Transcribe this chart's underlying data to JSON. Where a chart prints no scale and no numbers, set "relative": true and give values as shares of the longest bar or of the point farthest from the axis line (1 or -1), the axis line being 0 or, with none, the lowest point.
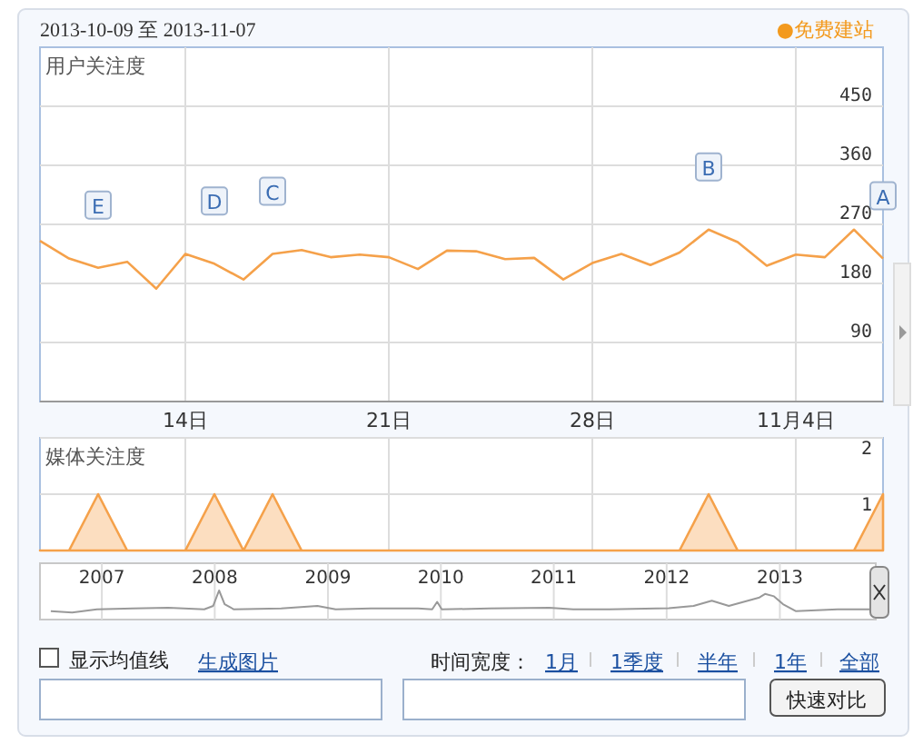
{
  "chart_data": [
    {
      "type": "line",
      "title": "2013-10-09 至 2013-11-07",
      "ylabel": "用户关注度",
      "x": [
        "2013-10-09",
        "2013-10-10",
        "2013-10-11",
        "2013-10-12",
        "2013-10-13",
        "2013-10-14",
        "2013-10-15",
        "2013-10-16",
        "2013-10-17",
        "2013-10-18",
        "2013-10-19",
        "2013-10-20",
        "2013-10-21",
        "2013-10-22",
        "2013-10-23",
        "2013-10-24",
        "2013-10-25",
        "2013-10-26",
        "2013-10-27",
        "2013-10-28",
        "2013-10-29",
        "2013-10-30",
        "2013-10-31",
        "2013-11-01",
        "2013-11-02",
        "2013-11-03",
        "2013-11-04",
        "2013-11-05",
        "2013-11-06",
        "2013-11-07"
      ],
      "series": [
        {
          "color": "#f5a14a",
          "values": [
            245,
            218,
            204,
            213,
            172,
            225,
            210,
            186,
            225,
            231,
            220,
            224,
            220,
            202,
            230,
            229,
            217,
            219,
            186,
            211,
            225,
            208,
            227,
            262,
            243,
            207,
            224,
            220,
            262,
            218
          ]
        }
      ],
      "xlim": [
        "2013-10-09",
        "2013-11-07"
      ],
      "xticks": [
        {
          "value": "2013-10-14",
          "label": "14日"
        },
        {
          "value": "2013-10-21",
          "label": "21日"
        },
        {
          "value": "2013-10-28",
          "label": "28日"
        },
        {
          "value": "2013-11-04",
          "label": "11月4日"
        }
      ],
      "ylim": [
        0,
        540
      ],
      "yticks": [
        90,
        180,
        270,
        360,
        450
      ],
      "grid": true,
      "annotations": [
        "●免费建站",
        {
          "text": "E",
          "x": "2013-10-11",
          "y": 204
        },
        {
          "text": "D",
          "x": "2013-10-15",
          "y": 210
        },
        {
          "text": "C",
          "x": "2013-10-17",
          "y": 225
        },
        {
          "text": "B",
          "x": "2013-11-01",
          "y": 262
        },
        {
          "text": "A",
          "x": "2013-11-07",
          "y": 218
        }
      ]
    },
    {
      "type": "area",
      "ylabel": "媒体关注度",
      "x": [
        "2013-10-09",
        "2013-10-10",
        "2013-10-11",
        "2013-10-12",
        "2013-10-13",
        "2013-10-14",
        "2013-10-15",
        "2013-10-16",
        "2013-10-17",
        "2013-10-18",
        "2013-10-19",
        "2013-10-20",
        "2013-10-21",
        "2013-10-22",
        "2013-10-23",
        "2013-10-24",
        "2013-10-25",
        "2013-10-26",
        "2013-10-27",
        "2013-10-28",
        "2013-10-29",
        "2013-10-30",
        "2013-10-31",
        "2013-11-01",
        "2013-11-02",
        "2013-11-03",
        "2013-11-04",
        "2013-11-05",
        "2013-11-06",
        "2013-11-07"
      ],
      "series": [
        {
          "color": "#f5a14a",
          "values": [
            0,
            0,
            1,
            0,
            0,
            0,
            1,
            0,
            1,
            0,
            0,
            0,
            0,
            0,
            0,
            0,
            0,
            0,
            0,
            0,
            0,
            0,
            0,
            1,
            0,
            0,
            0,
            0,
            0,
            1
          ]
        }
      ],
      "xlim": [
        "2013-10-09",
        "2013-11-07"
      ],
      "xticks": [
        {
          "value": "2013-10-14",
          "label": null
        },
        {
          "value": "2013-10-21",
          "label": null
        },
        {
          "value": "2013-10-28",
          "label": null
        },
        {
          "value": "2013-11-04",
          "label": null
        }
      ],
      "ylim": [
        0,
        2
      ],
      "yticks": [
        1,
        2
      ],
      "grid": true,
      "tick_labels": "y"
    },
    {
      "type": "line",
      "relative": true,
      "x": [
        "2006-07-20",
        "2006-09-27",
        "2006-12-16",
        "2007-04-12",
        "2007-08-04",
        "2007-11-28",
        "2007-12-27",
        "2008-01-15",
        "2008-02-02",
        "2008-03-03",
        "2008-08-03",
        "2008-11-28",
        "2009-01-26",
        "2009-05-19",
        "2009-10-20",
        "2009-12-04",
        "2009-12-20",
        "2010-01-04",
        "2010-06-07",
        "2010-12-17",
        "2011-03-05",
        "2011-06-29",
        "2012-01-08",
        "2012-03-28",
        "2012-05-26",
        "2012-07-20",
        "2012-10-27",
        "2012-11-14",
        "2012-12-13",
        "2013-01-11",
        "2013-02-21",
        "2013-07-06",
        "2013-10-30"
      ],
      "series": [
        {
          "color": "#999999",
          "values": [
            0.29,
            0.24,
            0.35,
            0.38,
            0.41,
            0.35,
            0.47,
            1,
            0.53,
            0.35,
            0.38,
            0.47,
            0.35,
            0.38,
            0.38,
            0.35,
            0.61,
            0.35,
            0.38,
            0.41,
            0.35,
            0.35,
            0.39,
            0.47,
            0.65,
            0.47,
            0.76,
            0.88,
            0.8,
            0.53,
            0.29,
            0.35,
            0.35
          ]
        }
      ],
      "xlim": [
        "2006-06-15",
        "2013-11-07"
      ],
      "xticks": [
        {
          "value": "2007-01-01",
          "label": "2007"
        },
        {
          "value": "2008-01-01",
          "label": "2008"
        },
        {
          "value": "2009-01-01",
          "label": "2009"
        },
        {
          "value": "2010-01-01",
          "label": "2010"
        },
        {
          "value": "2011-01-01",
          "label": "2011"
        },
        {
          "value": "2012-01-01",
          "label": "2012"
        },
        {
          "value": "2013-01-01",
          "label": "2013"
        }
      ],
      "grid": "x",
      "tick_labels": "x"
    },
    {
      "type": "other",
      "annotations": [
        "显示均值线",
        "生成图片",
        "时间宽度：",
        "1月",
        "1季度",
        "半年",
        "1年",
        "全部",
        "快速对比"
      ]
    }
  ]
}
